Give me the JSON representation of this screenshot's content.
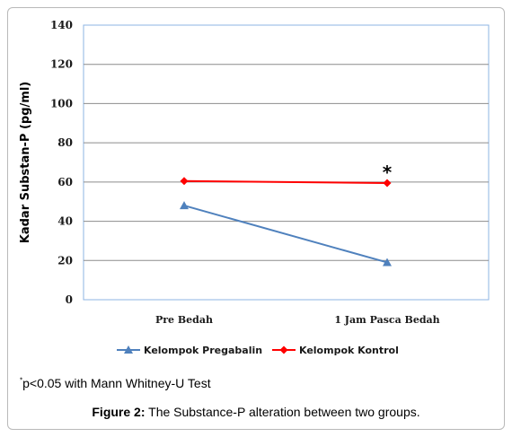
{
  "chart_data": {
    "type": "line",
    "categories": [
      "Pre Bedah",
      "1 Jam Pasca Bedah"
    ],
    "series": [
      {
        "name": "Kelompok Pregabalin",
        "values": [
          48,
          19
        ],
        "color": "#4f81bd",
        "marker": "triangle"
      },
      {
        "name": "Kelompok Kontrol",
        "values": [
          60.5,
          59.5
        ],
        "color": "#ff0000",
        "marker": "diamond"
      }
    ],
    "ylabel": "Kadar Substan-P (pg/ml)",
    "xlabel": "",
    "ylim": [
      0,
      140
    ],
    "yticks": [
      0,
      20,
      40,
      60,
      80,
      100,
      120,
      140
    ],
    "grid": true,
    "legend_position": "bottom",
    "annotations": [
      {
        "text": "*",
        "category": "1 Jam Pasca Bedah",
        "series": "Kelompok Kontrol"
      }
    ]
  },
  "footnote": {
    "marker": "*",
    "text": "p<0.05 with Mann Whitney-U Test"
  },
  "caption": {
    "label": "Figure 2:",
    "text": " The Substance-P alteration between two groups."
  }
}
